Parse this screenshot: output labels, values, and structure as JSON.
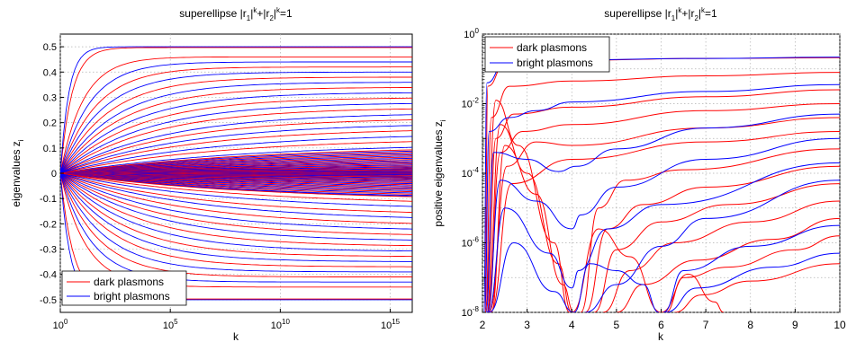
{
  "chart_data": [
    {
      "type": "line",
      "title": "superellipse |r1|k+|r2|k=1",
      "title_parts": {
        "a": "superellipse |r",
        "s1": "1",
        "b": "|",
        "p1": "k",
        "c": "+|r",
        "s2": "2",
        "d": "|",
        "p2": "k",
        "e": "=1"
      },
      "xlabel": "k",
      "ylabel": "eigenvalues z",
      "ylabel_sub": "i",
      "xscale": "log",
      "xlim": [
        1,
        1e+16
      ],
      "ylim": [
        -0.55,
        0.55
      ],
      "x_ticks": [
        {
          "base": "10",
          "exp": "0"
        },
        {
          "base": "10",
          "exp": "5"
        },
        {
          "base": "10",
          "exp": "10"
        },
        {
          "base": "10",
          "exp": "15"
        }
      ],
      "y_ticks": [
        "0.5",
        "0.4",
        "0.3",
        "0.2",
        "0.1",
        "0",
        "-0.1",
        "-0.2",
        "-0.3",
        "-0.4",
        "-0.5"
      ],
      "grid": true,
      "legend_position": "bottom-left",
      "legend": [
        "dark plasmons",
        "bright plasmons"
      ],
      "colors": {
        "dark": "#ff0000",
        "bright": "#0000ff"
      },
      "series": [
        {
          "name": "dark plasmons",
          "color": "#ff0000",
          "curves": [
            {
              "limit": 0.497,
              "rate": 1.9
            },
            {
              "limit": 0.46,
              "rate": 0.95
            },
            {
              "limit": 0.42,
              "rate": 0.62
            },
            {
              "limit": 0.38,
              "rate": 0.46
            },
            {
              "limit": 0.34,
              "rate": 0.36
            },
            {
              "limit": 0.3,
              "rate": 0.29
            },
            {
              "limit": 0.26,
              "rate": 0.24
            },
            {
              "limit": 0.22,
              "rate": 0.2
            },
            {
              "limit": 0.18,
              "rate": 0.17
            },
            {
              "limit": 0.14,
              "rate": 0.14
            },
            {
              "limit": -0.497,
              "rate": 1.7
            },
            {
              "limit": -0.45,
              "rate": 0.85
            },
            {
              "limit": -0.41,
              "rate": 0.58
            },
            {
              "limit": -0.37,
              "rate": 0.43
            },
            {
              "limit": -0.33,
              "rate": 0.34
            },
            {
              "limit": -0.29,
              "rate": 0.27
            },
            {
              "limit": -0.25,
              "rate": 0.22
            },
            {
              "limit": -0.21,
              "rate": 0.18
            },
            {
              "limit": -0.17,
              "rate": 0.15
            },
            {
              "limit": -0.13,
              "rate": 0.12
            }
          ]
        },
        {
          "name": "bright plasmons",
          "color": "#0000ff",
          "curves": [
            {
              "limit": 0.5,
              "rate": 2.6
            },
            {
              "limit": 0.44,
              "rate": 0.75
            },
            {
              "limit": 0.4,
              "rate": 0.53
            },
            {
              "limit": 0.36,
              "rate": 0.4
            },
            {
              "limit": 0.32,
              "rate": 0.32
            },
            {
              "limit": 0.28,
              "rate": 0.26
            },
            {
              "limit": 0.24,
              "rate": 0.21
            },
            {
              "limit": 0.2,
              "rate": 0.18
            },
            {
              "limit": 0.16,
              "rate": 0.15
            },
            {
              "limit": 0.12,
              "rate": 0.12
            },
            {
              "limit": -0.5,
              "rate": 2.3
            },
            {
              "limit": -0.43,
              "rate": 0.7
            },
            {
              "limit": -0.39,
              "rate": 0.5
            },
            {
              "limit": -0.35,
              "rate": 0.38
            },
            {
              "limit": -0.31,
              "rate": 0.3
            },
            {
              "limit": -0.27,
              "rate": 0.24
            },
            {
              "limit": -0.23,
              "rate": 0.2
            },
            {
              "limit": -0.19,
              "rate": 0.16
            },
            {
              "limit": -0.15,
              "rate": 0.13
            },
            {
              "limit": -0.11,
              "rate": 0.11
            }
          ]
        }
      ]
    },
    {
      "type": "line",
      "title": "superellipse |r1|k+|r2|k=1",
      "title_parts": {
        "a": "superellipse |r",
        "s1": "1",
        "b": "|",
        "p1": "k",
        "c": "+|r",
        "s2": "2",
        "d": "|",
        "p2": "k",
        "e": "=1"
      },
      "xlabel": "k",
      "ylabel": "positive eigenvalues z",
      "ylabel_sub": "i",
      "yscale": "log",
      "xlim": [
        2,
        10
      ],
      "ylim": [
        1e-08,
        1
      ],
      "x_ticks": [
        "2",
        "3",
        "4",
        "5",
        "6",
        "7",
        "8",
        "9",
        "10"
      ],
      "y_ticks": [
        {
          "base": "10",
          "exp": "0"
        },
        {
          "base": "10",
          "exp": "-2"
        },
        {
          "base": "10",
          "exp": "-4"
        },
        {
          "base": "10",
          "exp": "-6"
        },
        {
          "base": "10",
          "exp": "-8"
        }
      ],
      "grid": true,
      "legend_position": "top-left",
      "legend": [
        "dark plasmons",
        "bright plasmons"
      ],
      "colors": {
        "dark": "#ff0000",
        "bright": "#0000ff"
      },
      "series": [
        {
          "name": "dark plasmons",
          "color": "#ff0000",
          "curves": [
            [
              [
                2.05,
                -8
              ],
              [
                2.12,
                -1.5
              ],
              [
                2.5,
                -0.85
              ],
              [
                4,
                -0.75
              ],
              [
                7,
                -0.7
              ],
              [
                10,
                -0.68
              ]
            ],
            [
              [
                2.07,
                -8
              ],
              [
                2.2,
                -2.4
              ],
              [
                2.6,
                -1.5
              ],
              [
                4,
                -1.35
              ],
              [
                7,
                -1.2
              ],
              [
                10,
                -1.1
              ]
            ],
            [
              [
                2.1,
                -8
              ],
              [
                2.3,
                -3
              ],
              [
                2.7,
                -2.3
              ],
              [
                4,
                -2.1
              ],
              [
                7,
                -1.8
              ],
              [
                10,
                -1.6
              ]
            ],
            [
              [
                2.12,
                -8
              ],
              [
                2.4,
                -3.4
              ],
              [
                2.9,
                -2.8
              ],
              [
                4,
                -2.6
              ],
              [
                7,
                -2.2
              ],
              [
                10,
                -2
              ]
            ],
            [
              [
                2.15,
                -8
              ],
              [
                2.55,
                -3.8
              ],
              [
                3.2,
                -3.1
              ],
              [
                4,
                -3.2
              ],
              [
                7,
                -2.7
              ],
              [
                10,
                -2.4
              ]
            ],
            [
              [
                2.18,
                -8
              ],
              [
                2.65,
                -4.3
              ],
              [
                4,
                -3.6
              ],
              [
                7,
                -3.1
              ],
              [
                10,
                -2.8
              ]
            ],
            [
              [
                2.05,
                -8
              ],
              [
                2.3,
                -1.9
              ],
              [
                2.8,
                -3.2
              ],
              [
                3.6,
                -6
              ],
              [
                3.95,
                -8
              ]
            ],
            [
              [
                2.1,
                -8
              ],
              [
                2.4,
                -2.6
              ],
              [
                3,
                -4
              ],
              [
                3.7,
                -6.6
              ],
              [
                4,
                -8
              ]
            ],
            [
              [
                2.2,
                -8
              ],
              [
                2.5,
                -3.2
              ],
              [
                3.2,
                -4.6
              ],
              [
                3.8,
                -7.2
              ],
              [
                4.05,
                -8
              ]
            ],
            [
              [
                4.2,
                -8
              ],
              [
                4.6,
                -5
              ],
              [
                5.2,
                -4.2
              ],
              [
                6.5,
                -3.9
              ],
              [
                10,
                -3.3
              ]
            ],
            [
              [
                4.3,
                -8
              ],
              [
                4.8,
                -5.6
              ],
              [
                5.6,
                -4.9
              ],
              [
                7,
                -4.4
              ],
              [
                10,
                -3.8
              ]
            ],
            [
              [
                4.5,
                -8
              ],
              [
                5,
                -6.2
              ],
              [
                6,
                -5.4
              ],
              [
                7.5,
                -4.9
              ],
              [
                10,
                -4.3
              ]
            ],
            [
              [
                4.7,
                -8
              ],
              [
                5.3,
                -6.8
              ],
              [
                6.3,
                -6
              ],
              [
                8,
                -5.4
              ],
              [
                10,
                -4.8
              ]
            ],
            [
              [
                5,
                -8
              ],
              [
                5.6,
                -7.2
              ],
              [
                6.8,
                -6.5
              ],
              [
                8.5,
                -5.9
              ],
              [
                10,
                -5.3
              ]
            ],
            [
              [
                6.1,
                -8
              ],
              [
                6.5,
                -7
              ],
              [
                7.5,
                -6.7
              ],
              [
                9,
                -6.2
              ],
              [
                10,
                -5.8
              ]
            ],
            [
              [
                6.3,
                -8
              ],
              [
                6.9,
                -7.5
              ],
              [
                8,
                -7.1
              ],
              [
                10,
                -6.6
              ]
            ],
            [
              [
                4,
                -8
              ],
              [
                4.6,
                -5.6
              ],
              [
                5.3,
                -6.4
              ],
              [
                6,
                -8
              ]
            ],
            [
              [
                6,
                -8
              ],
              [
                6.6,
                -6.9
              ],
              [
                7.2,
                -7.7
              ],
              [
                7.4,
                -8
              ]
            ]
          ]
        },
        {
          "name": "bright plasmons",
          "color": "#0000ff",
          "curves": [
            [
              [
                2.03,
                -8
              ],
              [
                2.1,
                -1.4
              ],
              [
                2.5,
                -0.82
              ],
              [
                4,
                -0.74
              ],
              [
                7,
                -0.7
              ],
              [
                10,
                -0.66
              ]
            ],
            [
              [
                2.05,
                -8
              ],
              [
                2.15,
                -2.8
              ],
              [
                2.6,
                -2.4
              ],
              [
                3.2,
                -2.2
              ],
              [
                4,
                -1.95
              ],
              [
                7,
                -1.65
              ],
              [
                10,
                -1.45
              ]
            ],
            [
              [
                2.08,
                -8
              ],
              [
                2.25,
                -3.4
              ],
              [
                3,
                -3.6
              ],
              [
                3.7,
                -3.95
              ],
              [
                4.1,
                -3.8
              ],
              [
                5,
                -3.3
              ],
              [
                7,
                -2.7
              ],
              [
                10,
                -2.3
              ]
            ],
            [
              [
                2.1,
                -8
              ],
              [
                2.4,
                -4.2
              ],
              [
                3.2,
                -4.8
              ],
              [
                4,
                -5.6
              ],
              [
                4.2,
                -5.2
              ],
              [
                5,
                -4.4
              ],
              [
                7,
                -3.6
              ],
              [
                10,
                -3
              ]
            ],
            [
              [
                2.12,
                -8
              ],
              [
                2.5,
                -5
              ],
              [
                3.5,
                -6.3
              ],
              [
                4,
                -7.3
              ],
              [
                4.15,
                -6.8
              ],
              [
                4.8,
                -5.6
              ],
              [
                6,
                -4.9
              ],
              [
                10,
                -3.7
              ]
            ],
            [
              [
                2.15,
                -8
              ],
              [
                2.7,
                -6
              ],
              [
                3.6,
                -7.4
              ],
              [
                4.05,
                -8
              ]
            ],
            [
              [
                4.05,
                -8
              ],
              [
                4.4,
                -6.6
              ],
              [
                5,
                -6.8
              ],
              [
                5.6,
                -7.2
              ],
              [
                5.95,
                -8
              ]
            ],
            [
              [
                6.05,
                -8
              ],
              [
                6.5,
                -6.8
              ],
              [
                8,
                -6.1
              ],
              [
                10,
                -5.5
              ]
            ],
            [
              [
                6.1,
                -8
              ],
              [
                6.8,
                -7.3
              ],
              [
                8.5,
                -6.7
              ],
              [
                10,
                -6.3
              ]
            ],
            [
              [
                4.3,
                -8
              ],
              [
                5,
                -7.2
              ],
              [
                6,
                -6.1
              ],
              [
                7,
                -5.3
              ],
              [
                10,
                -4.2
              ]
            ]
          ]
        }
      ]
    }
  ]
}
